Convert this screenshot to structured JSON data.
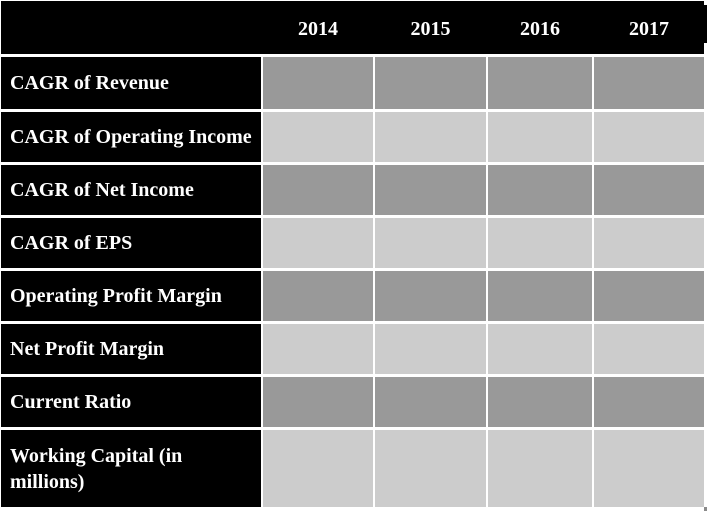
{
  "page": {
    "background": "#ffffff"
  },
  "table": {
    "header": {
      "corner": "",
      "year_columns": [
        "2014",
        "2015",
        "2016",
        "2017"
      ]
    },
    "rows": [
      {
        "label": "CAGR of Revenue",
        "values": [
          "",
          "",
          "",
          ""
        ]
      },
      {
        "label": "CAGR of Operating Income",
        "values": [
          "",
          "",
          "",
          ""
        ]
      },
      {
        "label": "CAGR of Net Income",
        "values": [
          "",
          "",
          "",
          ""
        ]
      },
      {
        "label": "CAGR of EPS",
        "values": [
          "",
          "",
          "",
          ""
        ]
      },
      {
        "label": "Operating Profit Margin",
        "values": [
          "",
          "",
          "",
          ""
        ]
      },
      {
        "label": "Net Profit Margin",
        "values": [
          "",
          "",
          "",
          ""
        ]
      },
      {
        "label": "Current Ratio",
        "values": [
          "",
          "",
          "",
          ""
        ]
      },
      {
        "label": "Working Capital (in millions)",
        "values": [
          "",
          "",
          "",
          ""
        ]
      }
    ],
    "colors": {
      "header_bg": "#000000",
      "label_bg": "#000000",
      "header_text": "#ffffff",
      "label_text": "#ffffff",
      "row_shade_dark": "#999999",
      "row_shade_light": "#cccccc",
      "grid_line": "#ffffff"
    }
  }
}
